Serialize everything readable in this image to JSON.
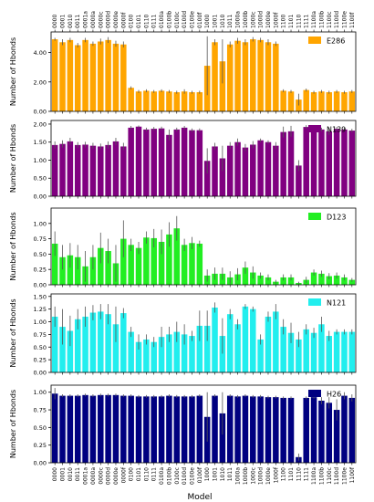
{
  "chart_data": {
    "type": "bar",
    "categories": [
      "0000",
      "0001",
      "0010",
      "0011",
      "0001a",
      "0000a",
      "0000c",
      "0000d",
      "0000e",
      "0000f",
      "0100",
      "0101",
      "0110",
      "0111",
      "0100a",
      "0100b",
      "0100c",
      "0100d",
      "0100e",
      "0100f",
      "1000",
      "1001",
      "1010",
      "1011",
      "1000a",
      "1000b",
      "1000c",
      "1000d",
      "1000e",
      "1000f",
      "1100",
      "1101",
      "1110",
      "1111",
      "1100a",
      "1100b",
      "1100c",
      "1100d",
      "1100e",
      "1100f"
    ],
    "xlabel": "Model",
    "ylabel": "Number of Hbonds",
    "panels": [
      {
        "name": "E286",
        "color": "#FFA500",
        "ylim": [
          0,
          5.4
        ],
        "yticks": [
          0.0,
          2.0,
          4.0
        ],
        "ytick_labels": [
          "0.00",
          "2.00",
          "4.00"
        ],
        "values": [
          4.9,
          4.7,
          4.85,
          4.5,
          4.85,
          4.6,
          4.75,
          4.85,
          4.6,
          4.55,
          1.6,
          1.35,
          1.4,
          1.35,
          1.4,
          1.35,
          1.3,
          1.35,
          1.3,
          1.3,
          3.1,
          4.7,
          3.4,
          4.55,
          4.8,
          4.7,
          4.9,
          4.85,
          4.7,
          4.6,
          1.4,
          1.35,
          0.8,
          1.45,
          1.3,
          1.35,
          1.3,
          1.35,
          1.3,
          1.35
        ],
        "errors": [
          0.1,
          0.2,
          0.15,
          0.15,
          0.15,
          0.15,
          0.2,
          0.2,
          0.2,
          0.2,
          0.1,
          0.1,
          0.1,
          0.1,
          0.1,
          0.1,
          0.1,
          0.15,
          0.1,
          0.1,
          2.0,
          0.2,
          1.5,
          0.2,
          0.2,
          0.2,
          0.15,
          0.15,
          0.2,
          0.15,
          0.1,
          0.1,
          0.4,
          0.1,
          0.1,
          0.1,
          0.1,
          0.1,
          0.1,
          0.1
        ]
      },
      {
        "name": "N139",
        "color": "#800080",
        "ylim": [
          0,
          2.1
        ],
        "yticks": [
          0,
          0.5,
          1.0,
          1.5,
          2.0
        ],
        "ytick_labels": [
          "0.00",
          "0.50",
          "1.00",
          "1.50",
          "2.00"
        ],
        "values": [
          1.42,
          1.45,
          1.52,
          1.42,
          1.43,
          1.4,
          1.38,
          1.42,
          1.52,
          1.38,
          1.9,
          1.93,
          1.85,
          1.87,
          1.88,
          1.7,
          1.85,
          1.9,
          1.83,
          1.83,
          0.98,
          1.38,
          1.05,
          1.4,
          1.5,
          1.35,
          1.43,
          1.55,
          1.5,
          1.4,
          1.78,
          1.8,
          0.85,
          1.92,
          1.9,
          1.85,
          1.8,
          1.87,
          1.85,
          1.82
        ],
        "errors": [
          0.1,
          0.1,
          0.1,
          0.08,
          0.08,
          0.08,
          0.08,
          0.1,
          0.1,
          0.1,
          0.05,
          0.03,
          0.05,
          0.05,
          0.05,
          0.15,
          0.05,
          0.05,
          0.05,
          0.05,
          0.35,
          0.1,
          0.35,
          0.1,
          0.1,
          0.1,
          0.1,
          0.05,
          0.05,
          0.1,
          0.15,
          0.15,
          0.15,
          0.05,
          0.05,
          0.05,
          0.1,
          0.05,
          0.05,
          0.05
        ]
      },
      {
        "name": "D123",
        "color": "#22EE22",
        "ylim": [
          0,
          1.25
        ],
        "yticks": [
          0,
          0.25,
          0.5,
          0.75,
          1.0
        ],
        "ytick_labels": [
          "0.00",
          "0.25",
          "0.50",
          "0.75",
          "1.00"
        ],
        "values": [
          0.67,
          0.45,
          0.48,
          0.45,
          0.3,
          0.45,
          0.6,
          0.55,
          0.35,
          0.75,
          0.65,
          0.6,
          0.77,
          0.76,
          0.7,
          0.82,
          0.92,
          0.65,
          0.68,
          0.67,
          0.15,
          0.18,
          0.18,
          0.12,
          0.17,
          0.28,
          0.2,
          0.15,
          0.12,
          0.05,
          0.12,
          0.12,
          0.03,
          0.08,
          0.2,
          0.18,
          0.14,
          0.15,
          0.12,
          0.08
        ],
        "errors": [
          0.2,
          0.2,
          0.2,
          0.2,
          0.25,
          0.2,
          0.25,
          0.2,
          0.3,
          0.3,
          0.1,
          0.1,
          0.1,
          0.15,
          0.2,
          0.2,
          0.2,
          0.1,
          0.1,
          0.05,
          0.1,
          0.1,
          0.1,
          0.1,
          0.1,
          0.1,
          0.1,
          0.05,
          0.05,
          0.03,
          0.05,
          0.05,
          0.02,
          0.05,
          0.05,
          0.05,
          0.05,
          0.05,
          0.05,
          0.03
        ]
      },
      {
        "name": "N121",
        "color": "#22EEEE",
        "ylim": [
          0,
          1.55
        ],
        "yticks": [
          0,
          0.25,
          0.5,
          0.75,
          1.0,
          1.25,
          1.5
        ],
        "ytick_labels": [
          "0.00",
          "0.25",
          "0.50",
          "0.75",
          "1.00",
          "1.25",
          "1.50"
        ],
        "values": [
          1.1,
          0.9,
          0.82,
          1.05,
          1.1,
          1.18,
          1.2,
          1.15,
          0.95,
          1.17,
          0.8,
          0.6,
          0.65,
          0.6,
          0.7,
          0.75,
          0.8,
          0.75,
          0.72,
          0.92,
          0.92,
          1.28,
          0.72,
          1.15,
          0.95,
          1.3,
          1.25,
          0.65,
          1.1,
          1.2,
          0.9,
          0.78,
          0.65,
          0.85,
          0.78,
          0.95,
          0.72,
          0.8,
          0.8,
          0.8
        ],
        "errors": [
          0.2,
          0.35,
          0.3,
          0.2,
          0.2,
          0.15,
          0.15,
          0.2,
          0.35,
          0.1,
          0.1,
          0.15,
          0.1,
          0.1,
          0.2,
          0.15,
          0.2,
          0.2,
          0.1,
          0.3,
          0.3,
          0.1,
          0.35,
          0.1,
          0.1,
          0.05,
          0.05,
          0.1,
          0.1,
          0.15,
          0.15,
          0.2,
          0.15,
          0.1,
          0.1,
          0.15,
          0.1,
          0.05,
          0.05,
          0.05
        ]
      },
      {
        "name": "H26",
        "color": "#000080",
        "ylim": [
          0,
          1.1
        ],
        "yticks": [
          0,
          0.25,
          0.5,
          0.75,
          1.0
        ],
        "ytick_labels": [
          "0.00",
          "0.25",
          "0.50",
          "0.75",
          "1.00"
        ],
        "values": [
          0.98,
          0.95,
          0.95,
          0.95,
          0.96,
          0.95,
          0.96,
          0.96,
          0.96,
          0.95,
          0.95,
          0.94,
          0.94,
          0.94,
          0.94,
          0.95,
          0.94,
          0.94,
          0.94,
          0.95,
          0.65,
          0.95,
          0.7,
          0.95,
          0.94,
          0.95,
          0.94,
          0.94,
          0.93,
          0.93,
          0.92,
          0.92,
          0.08,
          0.92,
          0.93,
          0.88,
          0.85,
          0.75,
          0.95,
          0.92
        ],
        "errors": [
          0.08,
          0.02,
          0.02,
          0.02,
          0.02,
          0.02,
          0.02,
          0.02,
          0.02,
          0.02,
          0.02,
          0.02,
          0.02,
          0.02,
          0.02,
          0.02,
          0.02,
          0.02,
          0.02,
          0.02,
          0.35,
          0.02,
          0.3,
          0.02,
          0.02,
          0.02,
          0.02,
          0.02,
          0.02,
          0.02,
          0.02,
          0.02,
          0.05,
          0.02,
          0.02,
          0.05,
          0.08,
          0.15,
          0.05,
          0.05
        ]
      }
    ]
  }
}
